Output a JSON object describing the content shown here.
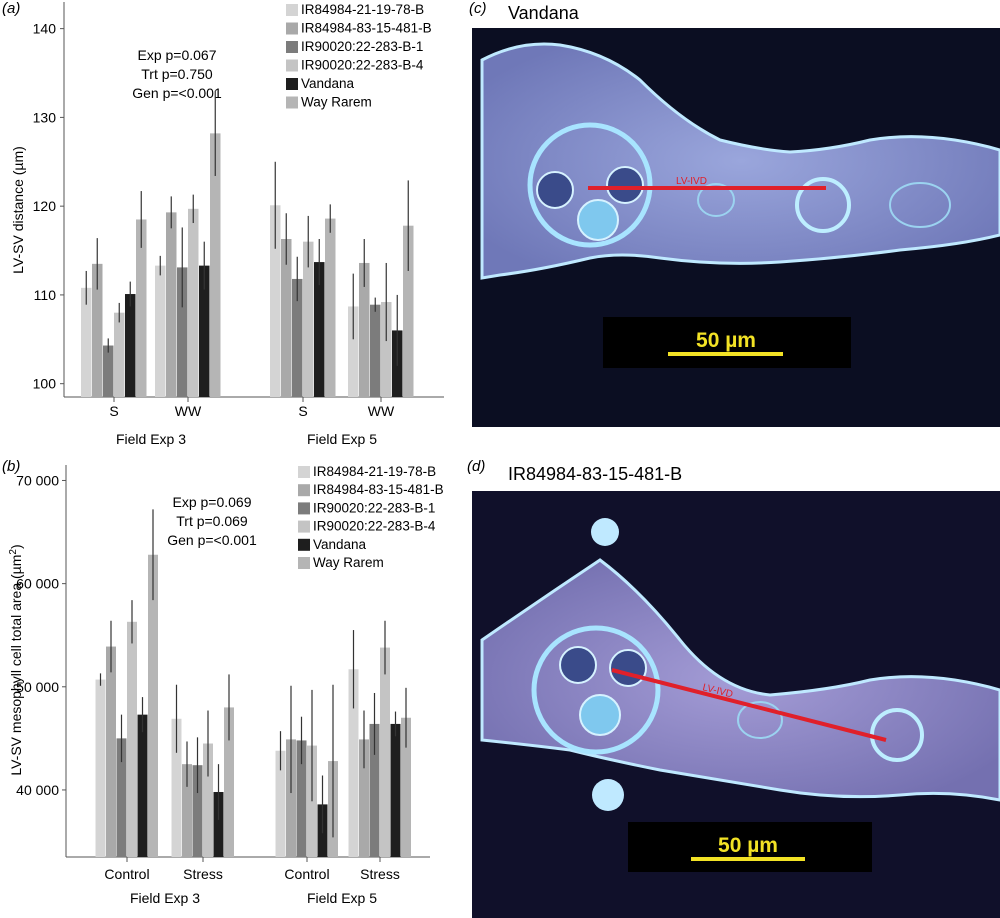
{
  "panels": {
    "a": {
      "tag": "(a)"
    },
    "b": {
      "tag": "(b)"
    },
    "c": {
      "tag": "(c)",
      "title": "Vandana",
      "line_label": "LV-IVD",
      "scale_label": "50 µm"
    },
    "d": {
      "tag": "(d)",
      "title": "IR84984-83-15-481-B",
      "line_label": "LV-IVD",
      "scale_label": "50 µm"
    }
  },
  "series_colors": [
    "#d4d4d4",
    "#a9a9a9",
    "#7c7c7c",
    "#c4c4c4",
    "#1e1e1e",
    "#b5b5b5"
  ],
  "chart_data": [
    {
      "type": "bar",
      "ylabel": "LV-SV distance (µm)",
      "ylim": [
        98.5,
        143
      ],
      "yticks": [
        100,
        110,
        120,
        130,
        140
      ],
      "groups": [
        {
          "label": "S",
          "block": "Field Exp 3"
        },
        {
          "label": "WW",
          "block": "Field Exp 3"
        },
        {
          "label": "S",
          "block": "Field Exp 5"
        },
        {
          "label": "WW",
          "block": "Field Exp 5"
        }
      ],
      "blocks": [
        "Field Exp 3",
        "Field Exp 5"
      ],
      "series": [
        {
          "name": "IR84984-21-19-78-B",
          "values": [
            110.8,
            113.3,
            120.1,
            108.7
          ],
          "errors": [
            1.9,
            1.1,
            4.9,
            3.7
          ]
        },
        {
          "name": "IR84984-83-15-481-B",
          "values": [
            113.5,
            119.3,
            116.3,
            113.6
          ],
          "errors": [
            2.9,
            1.8,
            2.9,
            2.7
          ]
        },
        {
          "name": "IR90020:22-283-B-1",
          "values": [
            104.3,
            113.1,
            111.8,
            108.9
          ],
          "errors": [
            0.8,
            4.5,
            2.5,
            0.8
          ]
        },
        {
          "name": "IR90020:22-283-B-4",
          "values": [
            108.0,
            119.7,
            116.0,
            109.2
          ],
          "errors": [
            1.1,
            1.6,
            2.9,
            4.4
          ]
        },
        {
          "name": "Vandana",
          "values": [
            110.1,
            113.3,
            113.7,
            106.0
          ],
          "errors": [
            1.4,
            2.7,
            2.6,
            4.0
          ]
        },
        {
          "name": "Way Rarem",
          "values": [
            118.5,
            128.2,
            118.6,
            117.8
          ],
          "errors": [
            3.2,
            4.8,
            1.6,
            5.1
          ]
        }
      ],
      "annotations": [
        "Exp p=0.067",
        "Trt p=0.750",
        "Gen p=<0.001"
      ]
    },
    {
      "type": "bar",
      "ylabel_main": "LV-SV mesophyll cell total area (µm",
      "ylabel_sup": "2",
      "ylabel_end": ")",
      "ylim": [
        33500,
        71500
      ],
      "yticks": [
        40000,
        50000,
        60000,
        70000
      ],
      "ytick_labels": [
        "40 000",
        "50 000",
        "60 000",
        "70 000"
      ],
      "groups": [
        {
          "label": "Control",
          "block": "Field Exp 3"
        },
        {
          "label": "Stress",
          "block": "Field Exp 3"
        },
        {
          "label": "Control",
          "block": "Field Exp 5"
        },
        {
          "label": "Stress",
          "block": "Field Exp 5"
        }
      ],
      "blocks": [
        "Field Exp 3",
        "Field Exp 5"
      ],
      "series": [
        {
          "name": "IR84984-21-19-78-B",
          "values": [
            50700,
            46900,
            43800,
            51700
          ],
          "errors": [
            600,
            3300,
            1900,
            3800
          ]
        },
        {
          "name": "IR84984-83-15-481-B",
          "values": [
            53900,
            42500,
            44900,
            44900
          ],
          "errors": [
            2500,
            2200,
            5200,
            2800
          ]
        },
        {
          "name": "IR90020:22-283-B-1",
          "values": [
            45000,
            42400,
            44800,
            46400
          ],
          "errors": [
            2300,
            2700,
            2300,
            3000
          ]
        },
        {
          "name": "IR90020:22-283-B-4",
          "values": [
            56300,
            44500,
            44300,
            53800
          ],
          "errors": [
            2100,
            3200,
            5400,
            2600
          ]
        },
        {
          "name": "Vandana",
          "values": [
            47300,
            39800,
            38600,
            46400
          ],
          "errors": [
            1700,
            2700,
            2800,
            1200
          ]
        },
        {
          "name": "Way Rarem",
          "values": [
            62800,
            48000,
            42800,
            47000
          ],
          "errors": [
            4400,
            3200,
            7400,
            2900
          ]
        }
      ],
      "annotations": [
        "Exp p=0.069",
        "Trt p=0.069",
        "Gen p=<0.001"
      ]
    }
  ]
}
